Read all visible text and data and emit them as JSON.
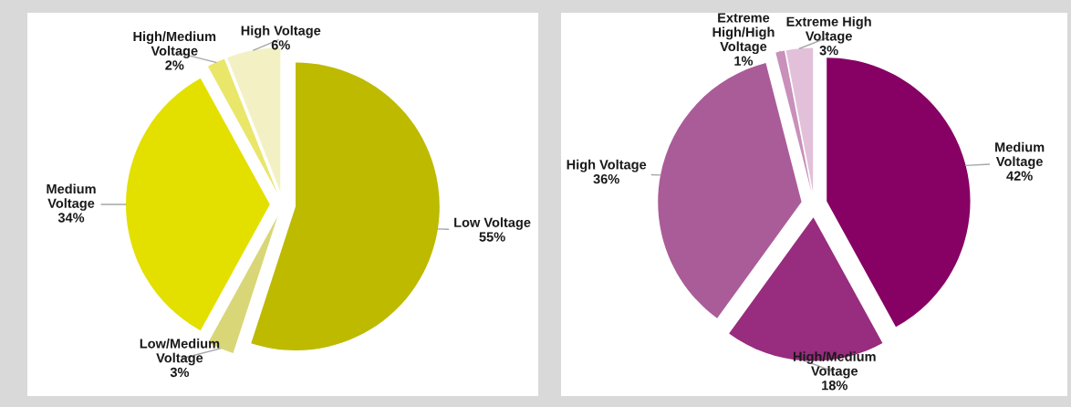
{
  "chart_data": [
    {
      "type": "pie",
      "categories": [
        "Low Voltage",
        "Low/Medium\nVoltage",
        "Medium\nVoltage",
        "High/Medium\nVoltage",
        "High Voltage"
      ],
      "values": [
        55,
        3,
        34,
        2,
        6
      ],
      "colors": [
        "#bdba00",
        "#d9d677",
        "#e3e000",
        "#e9e66a",
        "#f3f1c4"
      ],
      "value_labels": [
        "55%",
        "3%",
        "34%",
        "2%",
        "6%"
      ]
    },
    {
      "type": "pie",
      "categories": [
        "Medium\nVoltage",
        "High/Medium\nVoltage",
        "High Voltage",
        "Extreme\nHigh/High\nVoltage",
        "Extreme High\nVoltage"
      ],
      "values": [
        42,
        18,
        36,
        1,
        3
      ],
      "colors": [
        "#870064",
        "#982c7e",
        "#aa5c98",
        "#c890bb",
        "#e2c0d9"
      ],
      "value_labels": [
        "42%",
        "18%",
        "36%",
        "1%",
        "3%"
      ]
    }
  ]
}
